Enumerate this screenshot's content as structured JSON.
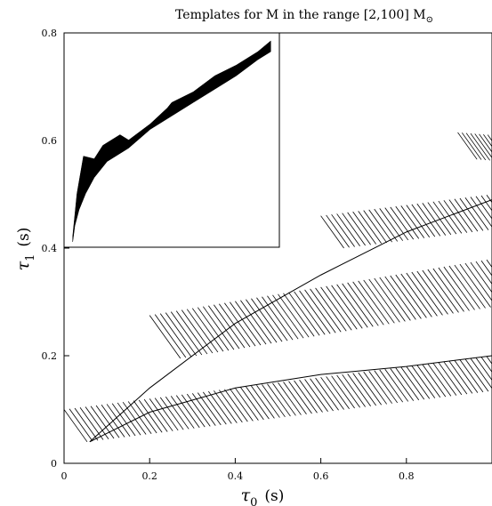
{
  "chart_data": {
    "type": "area",
    "title": "Templates for  M in the range [2,100] M",
    "title_symbol": "⊙",
    "xlabel": "τ",
    "xlabel_sub": "0",
    "xlabel_unit": "(s)",
    "ylabel": "τ",
    "ylabel_sub": "1",
    "ylabel_unit": "(s)",
    "xlim": [
      0,
      1.0
    ],
    "ylim": [
      0,
      0.8
    ],
    "x_ticks": [
      0,
      0.2,
      0.4,
      0.6,
      0.8
    ],
    "x_tick_labels": [
      "0",
      "0.2",
      "0.4",
      "0.6",
      "0.8"
    ],
    "y_ticks": [
      0,
      0.2,
      0.4,
      0.6,
      0.8
    ],
    "y_tick_labels": [
      "0",
      "0.2",
      "0.4",
      "0.6",
      "0.8"
    ],
    "grid": false,
    "bands": [
      {
        "x_start": 0.0,
        "x_end": 1.0,
        "y_start": 0.1,
        "y_end": 0.2,
        "width": 0.06,
        "slope": 0.16
      },
      {
        "x_start": 0.2,
        "x_end": 1.0,
        "y_start": 0.275,
        "y_end": 0.38,
        "width": 0.08,
        "slope": 0.17
      },
      {
        "x_start": 0.6,
        "x_end": 1.0,
        "y_start": 0.46,
        "y_end": 0.5,
        "width": 0.06,
        "slope": 0.1
      },
      {
        "x_start": 0.92,
        "x_end": 1.0,
        "y_start": 0.615,
        "y_end": 0.61,
        "width": 0.05,
        "slope": 0.0
      }
    ],
    "boundary_lines": [
      {
        "points": [
          [
            0.06,
            0.04
          ],
          [
            0.2,
            0.095
          ],
          [
            0.4,
            0.14
          ],
          [
            0.6,
            0.165
          ],
          [
            0.8,
            0.18
          ],
          [
            1.0,
            0.2
          ]
        ]
      },
      {
        "points": [
          [
            0.06,
            0.04
          ],
          [
            0.2,
            0.14
          ],
          [
            0.4,
            0.26
          ],
          [
            0.6,
            0.35
          ],
          [
            0.8,
            0.43
          ],
          [
            1.0,
            0.49
          ]
        ]
      }
    ],
    "inset": {
      "xlim": [
        0,
        0.5
      ],
      "ylim": [
        0.4,
        0.8
      ],
      "region_upper": [
        [
          0.02,
          0.42
        ],
        [
          0.03,
          0.5
        ],
        [
          0.045,
          0.57
        ],
        [
          0.07,
          0.565
        ],
        [
          0.09,
          0.59
        ],
        [
          0.11,
          0.6
        ],
        [
          0.13,
          0.61
        ],
        [
          0.15,
          0.6
        ],
        [
          0.2,
          0.63
        ],
        [
          0.24,
          0.66
        ],
        [
          0.25,
          0.67
        ],
        [
          0.3,
          0.69
        ],
        [
          0.35,
          0.72
        ],
        [
          0.4,
          0.74
        ],
        [
          0.45,
          0.765
        ],
        [
          0.48,
          0.785
        ]
      ],
      "region_lower": [
        [
          0.48,
          0.765
        ],
        [
          0.45,
          0.75
        ],
        [
          0.4,
          0.72
        ],
        [
          0.35,
          0.695
        ],
        [
          0.3,
          0.67
        ],
        [
          0.25,
          0.645
        ],
        [
          0.2,
          0.62
        ],
        [
          0.15,
          0.585
        ],
        [
          0.1,
          0.56
        ],
        [
          0.07,
          0.53
        ],
        [
          0.05,
          0.5
        ],
        [
          0.035,
          0.47
        ],
        [
          0.025,
          0.44
        ],
        [
          0.02,
          0.41
        ]
      ]
    }
  }
}
